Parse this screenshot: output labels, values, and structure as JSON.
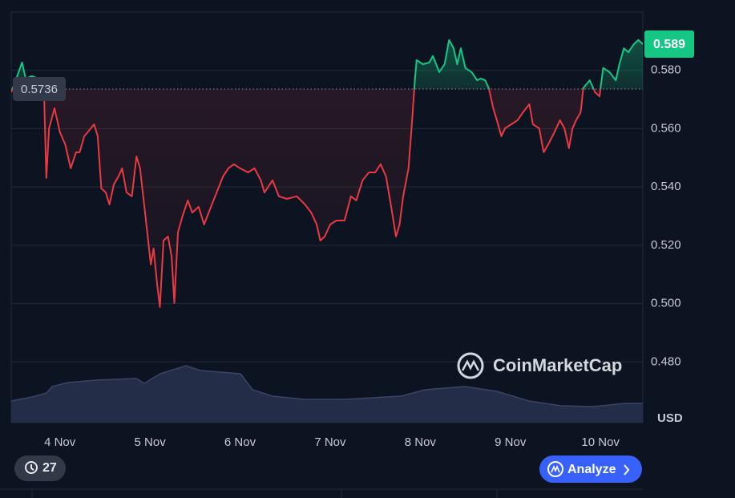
{
  "chart_data": {
    "type": "line",
    "watermark": "CoinMarketCap",
    "currency": "USD",
    "baseline": 0.5736,
    "current_price": 0.589,
    "up_color": "#16c784",
    "down_color": "#ea3943",
    "badge": "27",
    "button": "Analyze",
    "xlim": [
      -0.54,
      6.47
    ],
    "xticks": [
      {
        "value": 0,
        "label": "4 Nov"
      },
      {
        "value": 1,
        "label": "5 Nov"
      },
      {
        "value": 2,
        "label": "6 Nov"
      },
      {
        "value": 3,
        "label": "7 Nov"
      },
      {
        "value": 4,
        "label": "8 Nov"
      },
      {
        "value": 5,
        "label": "9 Nov"
      },
      {
        "value": 6,
        "label": "10 Nov"
      }
    ],
    "ylim": [
      0.46,
      0.6
    ],
    "yticks": [
      {
        "value": 0.48,
        "label": "0.480"
      },
      {
        "value": 0.5,
        "label": "0.500"
      },
      {
        "value": 0.52,
        "label": "0.520"
      },
      {
        "value": 0.54,
        "label": "0.540"
      },
      {
        "value": 0.56,
        "label": "0.560"
      },
      {
        "value": 0.58,
        "label": "0.580"
      }
    ],
    "x": [
      -0.54,
      -0.49,
      -0.42,
      -0.38,
      -0.31,
      -0.24,
      -0.18,
      -0.15,
      -0.12,
      -0.06,
      0,
      0.06,
      0.12,
      0.18,
      0.22,
      0.27,
      0.31,
      0.38,
      0.42,
      0.46,
      0.51,
      0.55,
      0.6,
      0.65,
      0.69,
      0.74,
      0.8,
      0.85,
      0.89,
      0.94,
      0.97,
      1.01,
      1.04,
      1.08,
      1.11,
      1.15,
      1.2,
      1.24,
      1.27,
      1.31,
      1.36,
      1.42,
      1.47,
      1.54,
      1.6,
      1.67,
      1.74,
      1.81,
      1.87,
      1.93,
      2,
      2.09,
      2.16,
      2.23,
      2.27,
      2.36,
      2.43,
      2.52,
      2.63,
      2.72,
      2.79,
      2.85,
      2.89,
      2.94,
      3,
      3.07,
      3.16,
      3.23,
      3.29,
      3.36,
      3.43,
      3.5,
      3.56,
      3.62,
      3.68,
      3.73,
      3.77,
      3.81,
      3.87,
      3.91,
      3.94,
      3.96,
      4.03,
      4.1,
      4.14,
      4.21,
      4.27,
      4.32,
      4.37,
      4.41,
      4.45,
      4.5,
      4.57,
      4.63,
      4.67,
      4.72,
      4.76,
      4.81,
      4.85,
      4.9,
      4.94,
      5.01,
      5.08,
      5.14,
      5.21,
      5.25,
      5.32,
      5.37,
      5.42,
      5.49,
      5.55,
      5.6,
      5.65,
      5.69,
      5.73,
      5.78,
      5.81,
      5.88,
      5.94,
      5.99,
      6.03,
      6.1,
      6.17,
      6.21,
      6.26,
      6.31,
      6.37,
      6.42,
      6.47
    ],
    "values": [
      0.5725,
      0.5766,
      0.5827,
      0.5772,
      0.578,
      0.5772,
      0.5766,
      0.5431,
      0.5601,
      0.567,
      0.5588,
      0.5546,
      0.5464,
      0.5519,
      0.5519,
      0.5574,
      0.5588,
      0.5615,
      0.5574,
      0.5395,
      0.5381,
      0.534,
      0.5409,
      0.5436,
      0.5464,
      0.5381,
      0.5368,
      0.5505,
      0.5464,
      0.5326,
      0.5244,
      0.5134,
      0.5189,
      0.5065,
      0.4988,
      0.5216,
      0.523,
      0.5161,
      0.5002,
      0.5244,
      0.5299,
      0.5354,
      0.5312,
      0.5332,
      0.5271,
      0.5326,
      0.5381,
      0.5436,
      0.5464,
      0.5478,
      0.5464,
      0.545,
      0.5464,
      0.5423,
      0.5381,
      0.5423,
      0.5368,
      0.5359,
      0.5368,
      0.534,
      0.5312,
      0.5271,
      0.5216,
      0.523,
      0.5271,
      0.5285,
      0.5285,
      0.5368,
      0.5354,
      0.5423,
      0.545,
      0.545,
      0.5478,
      0.5436,
      0.5326,
      0.523,
      0.5271,
      0.5368,
      0.5464,
      0.5629,
      0.5766,
      0.5835,
      0.5821,
      0.5827,
      0.5849,
      0.5794,
      0.5821,
      0.5904,
      0.5876,
      0.5821,
      0.5876,
      0.5808,
      0.5794,
      0.5766,
      0.5772,
      0.5766,
      0.5739,
      0.567,
      0.5629,
      0.5574,
      0.5601,
      0.5615,
      0.5629,
      0.5656,
      0.5684,
      0.5615,
      0.5601,
      0.5519,
      0.5546,
      0.5588,
      0.5629,
      0.5601,
      0.5533,
      0.5601,
      0.5629,
      0.5656,
      0.5739,
      0.5766,
      0.5725,
      0.5711,
      0.5808,
      0.5794,
      0.5766,
      0.5821,
      0.5876,
      0.5862,
      0.589,
      0.5904,
      0.589
    ]
  }
}
